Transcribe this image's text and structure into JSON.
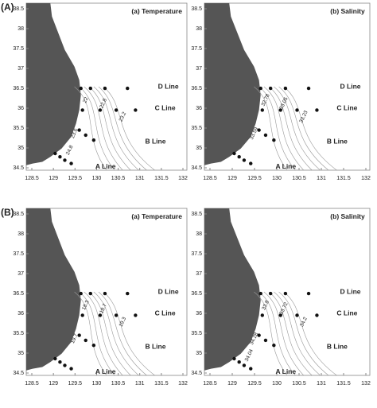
{
  "groups": [
    {
      "label": "(A)",
      "panels": [
        {
          "title": "(a) Temperature",
          "xticks": [
            128.5,
            129,
            129.5,
            130,
            130.5,
            131,
            131.5,
            132
          ],
          "yticks": [
            34.5,
            35,
            35.5,
            36,
            36.5,
            37,
            37.5,
            38,
            38.5
          ],
          "line_labels": [
            "D Line",
            "C Line",
            "B Line",
            "A Line"
          ],
          "contour_labels": [
            "22",
            "22.8",
            "23.2",
            "23.6",
            "24.8"
          ]
        },
        {
          "title": "(b) Salinity",
          "xticks": [
            128.5,
            129,
            129.5,
            130,
            130.5,
            131,
            131.5,
            132
          ],
          "yticks": [
            34.5,
            35,
            35.5,
            36,
            36.5,
            37,
            37.5,
            38,
            38.5
          ],
          "line_labels": [
            "D Line",
            "C Line",
            "B Line",
            "A Line"
          ],
          "contour_labels": [
            "32.78",
            "33.05",
            "33.23",
            "33.59"
          ]
        }
      ]
    },
    {
      "label": "(B)",
      "panels": [
        {
          "title": "(a) Temperature",
          "xticks": [
            128.5,
            129,
            129.5,
            130,
            130.5,
            131,
            131.5,
            132
          ],
          "yticks": [
            34.5,
            35,
            35.5,
            36,
            36.5,
            37,
            37.5,
            38,
            38.5
          ],
          "line_labels": [
            "D Line",
            "C Line",
            "B Line",
            "A Line"
          ],
          "contour_labels": [
            "18.3",
            "18.7",
            "19.3",
            "19.7"
          ]
        },
        {
          "title": "(b) Salinity",
          "xticks": [
            128.5,
            129,
            129.5,
            130,
            130.5,
            131,
            131.5,
            132
          ],
          "yticks": [
            34.5,
            35,
            35.5,
            36,
            36.5,
            37,
            37.5,
            38,
            38.5
          ],
          "line_labels": [
            "D Line",
            "C Line",
            "B Line",
            "A Line"
          ],
          "contour_labels": [
            "33.8",
            "33.72",
            "34.2",
            "34.28",
            "34.04"
          ]
        }
      ]
    }
  ]
}
